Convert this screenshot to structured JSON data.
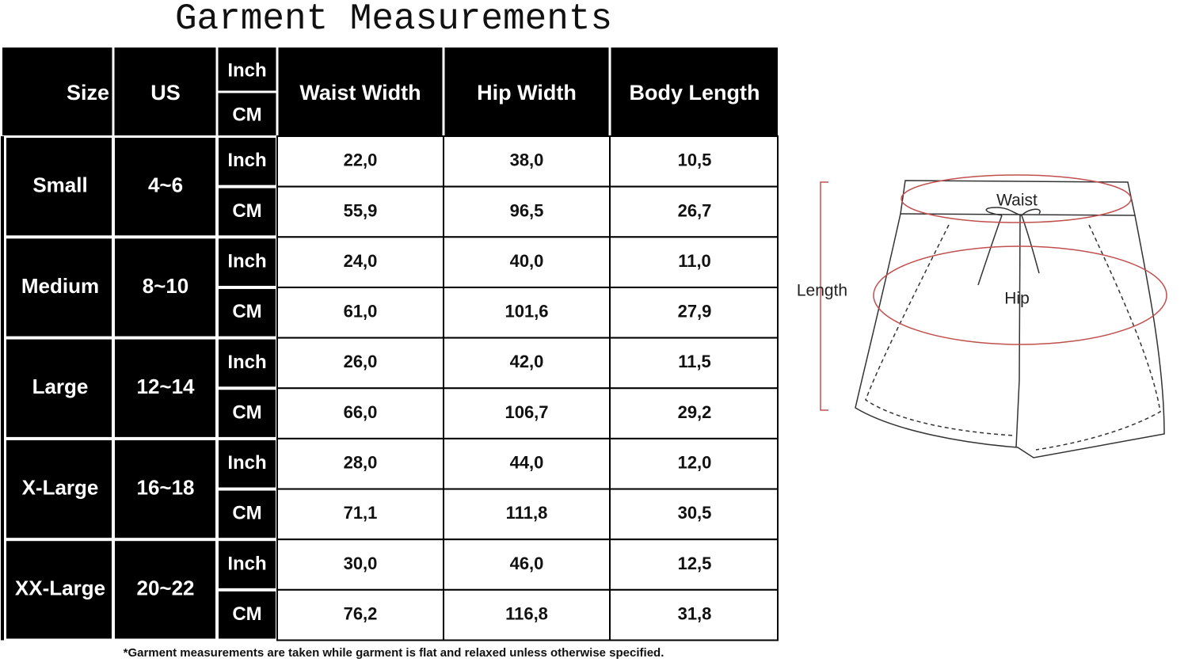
{
  "title": "Garment Measurements",
  "table": {
    "header": {
      "size": "Size",
      "us": "US",
      "units": [
        "Inch",
        "CM"
      ],
      "columns": [
        "Waist Width",
        "Hip Width",
        "Body Length"
      ]
    },
    "rows": [
      {
        "size": "Small",
        "us": "4~6",
        "units": [
          {
            "unit": "Inch",
            "values": [
              "22,0",
              "38,0",
              "10,5"
            ]
          },
          {
            "unit": "CM",
            "values": [
              "55,9",
              "96,5",
              "26,7"
            ]
          }
        ]
      },
      {
        "size": "Medium",
        "us": "8~10",
        "units": [
          {
            "unit": "Inch",
            "values": [
              "24,0",
              "40,0",
              "11,0"
            ]
          },
          {
            "unit": "CM",
            "values": [
              "61,0",
              "101,6",
              "27,9"
            ]
          }
        ]
      },
      {
        "size": "Large",
        "us": "12~14",
        "units": [
          {
            "unit": "Inch",
            "values": [
              "26,0",
              "42,0",
              "11,5"
            ]
          },
          {
            "unit": "CM",
            "values": [
              "66,0",
              "106,7",
              "29,2"
            ]
          }
        ]
      },
      {
        "size": "X-Large",
        "us": "16~18",
        "units": [
          {
            "unit": "Inch",
            "values": [
              "28,0",
              "44,0",
              "12,0"
            ]
          },
          {
            "unit": "CM",
            "values": [
              "71,1",
              "111,8",
              "30,5"
            ]
          }
        ]
      },
      {
        "size": "XX-Large",
        "us": "20~22",
        "units": [
          {
            "unit": "Inch",
            "values": [
              "30,0",
              "46,0",
              "12,5"
            ]
          },
          {
            "unit": "CM",
            "values": [
              "76,2",
              "116,8",
              "31,8"
            ]
          }
        ]
      }
    ]
  },
  "footnote": "*Garment measurements are taken while garment is flat and relaxed unless otherwise specified.",
  "diagram": {
    "waist": "Waist",
    "hip": "Hip",
    "length": "Length"
  }
}
